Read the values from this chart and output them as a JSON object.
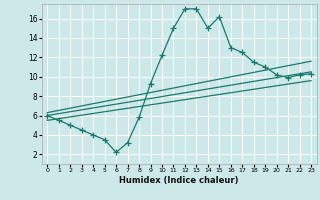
{
  "xlabel": "Humidex (Indice chaleur)",
  "bg_color": "#cce8e8",
  "grid_color": "#ffffff",
  "line_color": "#1a7a6e",
  "xlim": [
    -0.5,
    23.5
  ],
  "ylim": [
    1,
    17.5
  ],
  "xticks": [
    0,
    1,
    2,
    3,
    4,
    5,
    6,
    7,
    8,
    9,
    10,
    11,
    12,
    13,
    14,
    15,
    16,
    17,
    18,
    19,
    20,
    21,
    22,
    23
  ],
  "yticks": [
    2,
    4,
    6,
    8,
    10,
    12,
    14,
    16
  ],
  "main_x": [
    0,
    1,
    2,
    3,
    4,
    5,
    6,
    7,
    8,
    9,
    10,
    11,
    12,
    13,
    14,
    15,
    16,
    17,
    18,
    19,
    20,
    21,
    22,
    23
  ],
  "main_y": [
    6.0,
    5.5,
    5.0,
    4.5,
    4.0,
    3.5,
    2.2,
    3.2,
    5.8,
    9.3,
    12.2,
    15.0,
    17.0,
    17.0,
    15.0,
    16.2,
    13.0,
    12.5,
    11.5,
    11.0,
    10.2,
    9.9,
    10.2,
    10.3
  ],
  "line1_x": [
    0,
    23
  ],
  "line1_y": [
    6.0,
    10.5
  ],
  "line2_x": [
    0,
    23
  ],
  "line2_y": [
    6.3,
    11.6
  ],
  "line3_x": [
    0,
    23
  ],
  "line3_y": [
    5.5,
    9.6
  ]
}
